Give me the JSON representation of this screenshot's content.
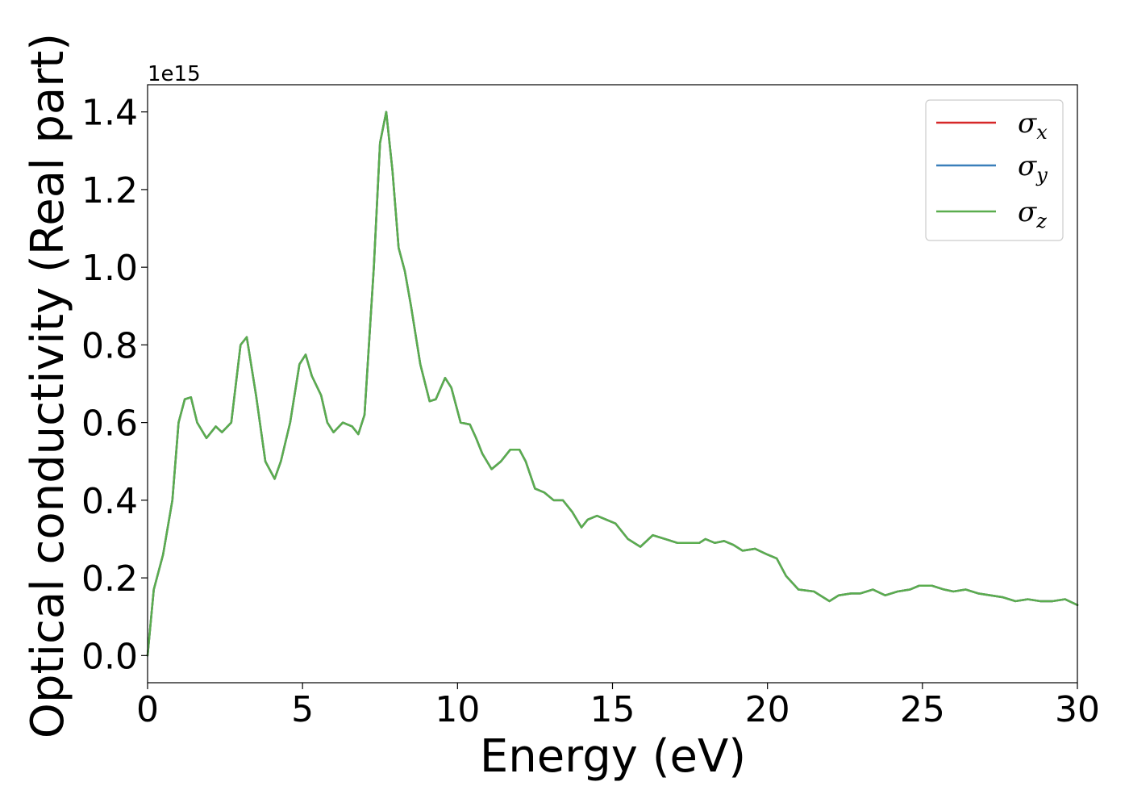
{
  "chart_data": {
    "type": "line",
    "xlabel": "Energy (eV)",
    "ylabel": "Optical conductivity (Real part)",
    "y_offset_label": "1e15",
    "xlim": [
      0,
      30
    ],
    "ylim": [
      -0.07,
      1.47
    ],
    "y_scale_factor": 1000000000000000.0,
    "x_ticks": [
      0,
      5,
      10,
      15,
      20,
      25,
      30
    ],
    "x_tick_labels": [
      "0",
      "5",
      "10",
      "15",
      "20",
      "25",
      "30"
    ],
    "y_ticks": [
      0.0,
      0.2,
      0.4,
      0.6,
      0.8,
      1.0,
      1.2,
      1.4
    ],
    "y_tick_labels": [
      "0.0",
      "0.2",
      "0.4",
      "0.6",
      "0.8",
      "1.0",
      "1.2",
      "1.4"
    ],
    "grid": false,
    "legend_position": "top-right",
    "colors": {
      "sigma_x": "#d62728",
      "sigma_y": "#3a7fba",
      "sigma_z": "#5aad4e"
    },
    "x": [
      0,
      0.2,
      0.5,
      0.8,
      1.0,
      1.2,
      1.4,
      1.6,
      1.9,
      2.2,
      2.4,
      2.7,
      3.0,
      3.2,
      3.5,
      3.8,
      4.1,
      4.3,
      4.6,
      4.9,
      5.1,
      5.3,
      5.6,
      5.8,
      6.0,
      6.3,
      6.6,
      6.8,
      7.0,
      7.3,
      7.5,
      7.7,
      7.9,
      8.1,
      8.3,
      8.5,
      8.8,
      9.1,
      9.3,
      9.6,
      9.8,
      10.1,
      10.4,
      10.6,
      10.8,
      11.1,
      11.4,
      11.7,
      12.0,
      12.2,
      12.5,
      12.8,
      13.1,
      13.4,
      13.7,
      14.0,
      14.2,
      14.5,
      14.8,
      15.1,
      15.5,
      15.9,
      16.3,
      16.7,
      17.1,
      17.5,
      17.8,
      18.0,
      18.3,
      18.6,
      18.9,
      19.2,
      19.6,
      20.0,
      20.3,
      20.6,
      21.0,
      21.5,
      22.0,
      22.3,
      22.7,
      23.0,
      23.4,
      23.8,
      24.2,
      24.6,
      24.9,
      25.3,
      25.7,
      26.0,
      26.4,
      26.8,
      27.2,
      27.6,
      28.0,
      28.4,
      28.8,
      29.2,
      29.6,
      30.0
    ],
    "series": [
      {
        "name": "σx",
        "symbol": "σ",
        "subscript": "x",
        "values": [
          0.0,
          0.17,
          0.26,
          0.4,
          0.6,
          0.66,
          0.665,
          0.6,
          0.56,
          0.59,
          0.575,
          0.6,
          0.8,
          0.82,
          0.67,
          0.5,
          0.455,
          0.5,
          0.6,
          0.75,
          0.775,
          0.72,
          0.67,
          0.6,
          0.575,
          0.6,
          0.59,
          0.57,
          0.62,
          1.0,
          1.32,
          1.4,
          1.25,
          1.05,
          0.99,
          0.9,
          0.75,
          0.655,
          0.66,
          0.715,
          0.69,
          0.6,
          0.595,
          0.56,
          0.52,
          0.48,
          0.5,
          0.53,
          0.53,
          0.5,
          0.43,
          0.42,
          0.4,
          0.4,
          0.37,
          0.33,
          0.35,
          0.36,
          0.35,
          0.34,
          0.3,
          0.28,
          0.31,
          0.3,
          0.29,
          0.29,
          0.29,
          0.3,
          0.29,
          0.295,
          0.285,
          0.27,
          0.275,
          0.26,
          0.25,
          0.205,
          0.17,
          0.165,
          0.14,
          0.155,
          0.16,
          0.16,
          0.17,
          0.155,
          0.165,
          0.17,
          0.18,
          0.18,
          0.17,
          0.165,
          0.17,
          0.16,
          0.155,
          0.15,
          0.14,
          0.145,
          0.14,
          0.14,
          0.145,
          0.13
        ]
      },
      {
        "name": "σy",
        "symbol": "σ",
        "subscript": "y",
        "values": [
          0.0,
          0.17,
          0.26,
          0.4,
          0.6,
          0.66,
          0.665,
          0.6,
          0.56,
          0.59,
          0.575,
          0.6,
          0.8,
          0.82,
          0.67,
          0.5,
          0.455,
          0.5,
          0.6,
          0.75,
          0.775,
          0.72,
          0.67,
          0.6,
          0.575,
          0.6,
          0.59,
          0.57,
          0.62,
          1.0,
          1.32,
          1.4,
          1.25,
          1.05,
          0.99,
          0.9,
          0.75,
          0.655,
          0.66,
          0.715,
          0.69,
          0.6,
          0.595,
          0.56,
          0.52,
          0.48,
          0.5,
          0.53,
          0.53,
          0.5,
          0.43,
          0.42,
          0.4,
          0.4,
          0.37,
          0.33,
          0.35,
          0.36,
          0.35,
          0.34,
          0.3,
          0.28,
          0.31,
          0.3,
          0.29,
          0.29,
          0.29,
          0.3,
          0.29,
          0.295,
          0.285,
          0.27,
          0.275,
          0.26,
          0.25,
          0.205,
          0.17,
          0.165,
          0.14,
          0.155,
          0.16,
          0.16,
          0.17,
          0.155,
          0.165,
          0.17,
          0.18,
          0.18,
          0.17,
          0.165,
          0.17,
          0.16,
          0.155,
          0.15,
          0.14,
          0.145,
          0.14,
          0.14,
          0.145,
          0.13
        ]
      },
      {
        "name": "σz",
        "symbol": "σ",
        "subscript": "z",
        "values": [
          0.0,
          0.17,
          0.26,
          0.4,
          0.6,
          0.66,
          0.665,
          0.6,
          0.56,
          0.59,
          0.575,
          0.6,
          0.8,
          0.82,
          0.67,
          0.5,
          0.455,
          0.5,
          0.6,
          0.75,
          0.775,
          0.72,
          0.67,
          0.6,
          0.575,
          0.6,
          0.59,
          0.57,
          0.62,
          1.0,
          1.32,
          1.4,
          1.25,
          1.05,
          0.99,
          0.9,
          0.75,
          0.655,
          0.66,
          0.715,
          0.69,
          0.6,
          0.595,
          0.56,
          0.52,
          0.48,
          0.5,
          0.53,
          0.53,
          0.5,
          0.43,
          0.42,
          0.4,
          0.4,
          0.37,
          0.33,
          0.35,
          0.36,
          0.35,
          0.34,
          0.3,
          0.28,
          0.31,
          0.3,
          0.29,
          0.29,
          0.29,
          0.3,
          0.29,
          0.295,
          0.285,
          0.27,
          0.275,
          0.26,
          0.25,
          0.205,
          0.17,
          0.165,
          0.14,
          0.155,
          0.16,
          0.16,
          0.17,
          0.155,
          0.165,
          0.17,
          0.18,
          0.18,
          0.17,
          0.165,
          0.17,
          0.16,
          0.155,
          0.15,
          0.14,
          0.145,
          0.14,
          0.14,
          0.145,
          0.13
        ]
      }
    ]
  }
}
